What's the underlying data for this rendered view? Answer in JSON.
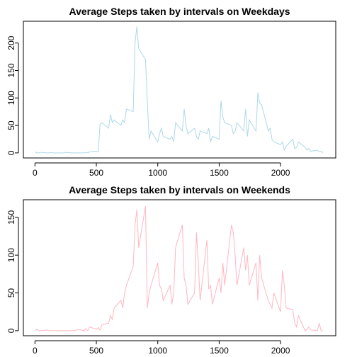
{
  "chart_data": [
    {
      "type": "line",
      "title": "Average Steps taken by intervals on Weekdays",
      "x": [
        0,
        15,
        30,
        45,
        100,
        115,
        130,
        145,
        200,
        215,
        230,
        245,
        300,
        315,
        330,
        345,
        400,
        415,
        430,
        445,
        500,
        515,
        530,
        545,
        600,
        615,
        630,
        645,
        700,
        715,
        730,
        745,
        800,
        815,
        830,
        845,
        900,
        915,
        930,
        945,
        1000,
        1015,
        1030,
        1045,
        1100,
        1115,
        1130,
        1145,
        1200,
        1215,
        1230,
        1245,
        1300,
        1315,
        1330,
        1345,
        1400,
        1415,
        1430,
        1445,
        1500,
        1515,
        1530,
        1545,
        1600,
        1615,
        1630,
        1645,
        1700,
        1715,
        1730,
        1745,
        1800,
        1815,
        1830,
        1845,
        1900,
        1915,
        1930,
        1945,
        2000,
        2015,
        2030,
        2045,
        2100,
        2115,
        2130,
        2145,
        2200,
        2215,
        2230,
        2245,
        2300,
        2315,
        2330,
        2345
      ],
      "series": [
        {
          "color": "#add8e6",
          "values": [
            2,
            0,
            0,
            1,
            0,
            0,
            1,
            0,
            0,
            0,
            0,
            1,
            0,
            0,
            0,
            0,
            0,
            1,
            0,
            2,
            3,
            2,
            52,
            55,
            45,
            70,
            55,
            60,
            50,
            60,
            55,
            80,
            75,
            200,
            230,
            190,
            170,
            95,
            25,
            40,
            20,
            35,
            45,
            30,
            25,
            30,
            20,
            55,
            40,
            80,
            50,
            35,
            45,
            30,
            25,
            40,
            35,
            45,
            20,
            30,
            25,
            95,
            65,
            55,
            50,
            35,
            40,
            55,
            40,
            80,
            30,
            60,
            40,
            110,
            90,
            88,
            40,
            45,
            25,
            20,
            15,
            20,
            5,
            12,
            25,
            8,
            10,
            20,
            10,
            5,
            8,
            3,
            5,
            2,
            3,
            0
          ]
        }
      ],
      "xlim": [
        -94.2,
        2449.2
      ],
      "xticks": [
        0,
        500,
        1000,
        1500,
        2000
      ],
      "ylim": [
        -9.2,
        239.6
      ],
      "yticks": [
        0,
        50,
        100,
        150,
        200
      ]
    },
    {
      "type": "line",
      "title": "Average Steps taken by intervals on Weekends",
      "x": [
        0,
        15,
        30,
        45,
        100,
        115,
        130,
        145,
        200,
        215,
        230,
        245,
        300,
        315,
        330,
        345,
        400,
        415,
        430,
        445,
        500,
        515,
        530,
        545,
        600,
        615,
        630,
        645,
        700,
        715,
        730,
        745,
        800,
        815,
        830,
        845,
        900,
        915,
        930,
        945,
        1000,
        1015,
        1030,
        1045,
        1100,
        1115,
        1130,
        1145,
        1200,
        1215,
        1230,
        1245,
        1300,
        1315,
        1330,
        1345,
        1400,
        1415,
        1430,
        1445,
        1500,
        1515,
        1530,
        1545,
        1600,
        1615,
        1630,
        1645,
        1700,
        1715,
        1730,
        1745,
        1800,
        1815,
        1830,
        1845,
        1900,
        1915,
        1930,
        1945,
        2000,
        2015,
        2030,
        2045,
        2100,
        2115,
        2130,
        2145,
        2200,
        2215,
        2230,
        2245,
        2300,
        2315,
        2330,
        2345
      ],
      "series": [
        {
          "color": "#ffb6c1",
          "values": [
            0,
            2,
            0,
            0,
            1,
            0,
            0,
            0,
            0,
            0,
            0,
            0,
            0,
            0,
            0,
            2,
            0,
            3,
            0,
            5,
            2,
            4,
            1,
            8,
            10,
            20,
            15,
            30,
            40,
            30,
            50,
            60,
            85,
            140,
            160,
            110,
            165,
            30,
            50,
            60,
            90,
            60,
            55,
            40,
            60,
            35,
            50,
            110,
            140,
            70,
            60,
            35,
            50,
            130,
            90,
            40,
            120,
            55,
            60,
            35,
            70,
            50,
            90,
            60,
            140,
            130,
            100,
            60,
            110,
            80,
            100,
            60,
            90,
            40,
            100,
            70,
            40,
            35,
            30,
            50,
            25,
            80,
            60,
            30,
            28,
            10,
            5,
            20,
            0,
            2,
            5,
            1,
            0,
            10,
            0,
            0
          ]
        }
      ],
      "xlim": [
        -94.2,
        2449.2
      ],
      "xticks": [
        0,
        500,
        1000,
        1500,
        2000
      ],
      "ylim": [
        -6.66,
        173.3
      ],
      "yticks": [
        0,
        50,
        100,
        150
      ]
    }
  ]
}
